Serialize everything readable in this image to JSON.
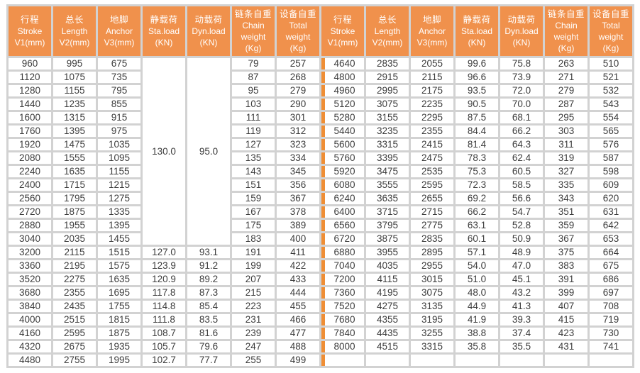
{
  "table_title": "chain-hoist-specification-table",
  "colors": {
    "header_bg": "#f0914c",
    "divider_orange": "#ef8e35",
    "grid_gutter": "#d2d2d2",
    "cell_bg": "#ffffff",
    "header_text": "#ffffff",
    "cell_text": "#3c3c3c"
  },
  "header": {
    "columns": [
      {
        "key": "stroke",
        "zh": "行程",
        "en": "Stroke",
        "unit": "V1(mm)"
      },
      {
        "key": "length",
        "zh": "总长",
        "en": "Length",
        "unit": "V2(mm)"
      },
      {
        "key": "anchor",
        "zh": "地脚",
        "en": "Anchor",
        "unit": "V3(mm)"
      },
      {
        "key": "sta-load",
        "zh": "静载荷",
        "en": "Sta.load",
        "unit": "(KN)"
      },
      {
        "key": "dyn-load",
        "zh": "动载荷",
        "en": "Dyn.load",
        "unit": "(KN)"
      },
      {
        "key": "chain-weight",
        "zh": "链条自重",
        "en": "Chain weight",
        "unit": "(Kg)"
      },
      {
        "key": "total-weight",
        "zh": "设备自重",
        "en": "Total weight",
        "unit": "(Kg)"
      }
    ]
  },
  "left_table": {
    "merged": {
      "sta_load": "130.0",
      "dyn_load": "95.0",
      "row_span": 14
    },
    "rows": [
      [
        "960",
        "995",
        "675",
        null,
        null,
        "79",
        "257"
      ],
      [
        "1120",
        "1075",
        "735",
        null,
        null,
        "87",
        "268"
      ],
      [
        "1280",
        "1155",
        "795",
        null,
        null,
        "95",
        "279"
      ],
      [
        "1440",
        "1235",
        "855",
        null,
        null,
        "103",
        "290"
      ],
      [
        "1600",
        "1315",
        "915",
        null,
        null,
        "111",
        "301"
      ],
      [
        "1760",
        "1395",
        "975",
        null,
        null,
        "119",
        "312"
      ],
      [
        "1920",
        "1475",
        "1035",
        null,
        null,
        "127",
        "323"
      ],
      [
        "2080",
        "1555",
        "1095",
        null,
        null,
        "135",
        "334"
      ],
      [
        "2240",
        "1635",
        "1155",
        null,
        null,
        "143",
        "345"
      ],
      [
        "2400",
        "1715",
        "1215",
        null,
        null,
        "151",
        "356"
      ],
      [
        "2560",
        "1795",
        "1275",
        null,
        null,
        "159",
        "367"
      ],
      [
        "2720",
        "1875",
        "1335",
        null,
        null,
        "167",
        "378"
      ],
      [
        "2880",
        "1955",
        "1395",
        null,
        null,
        "175",
        "389"
      ],
      [
        "3040",
        "2035",
        "1455",
        null,
        null,
        "183",
        "400"
      ],
      [
        "3200",
        "2115",
        "1515",
        "127.0",
        "93.1",
        "191",
        "411"
      ],
      [
        "3360",
        "2195",
        "1575",
        "123.9",
        "91.2",
        "199",
        "422"
      ],
      [
        "3520",
        "2275",
        "1635",
        "120.9",
        "89.2",
        "207",
        "433"
      ],
      [
        "3680",
        "2355",
        "1695",
        "117.8",
        "87.3",
        "215",
        "444"
      ],
      [
        "3840",
        "2435",
        "1755",
        "114.8",
        "85.4",
        "223",
        "455"
      ],
      [
        "4000",
        "2515",
        "1815",
        "111.8",
        "83.5",
        "231",
        "466"
      ],
      [
        "4160",
        "2595",
        "1875",
        "108.7",
        "81.6",
        "239",
        "477"
      ],
      [
        "4320",
        "2675",
        "1935",
        "105.7",
        "79.6",
        "247",
        "488"
      ],
      [
        "4480",
        "2755",
        "1995",
        "102.7",
        "77.7",
        "255",
        "499"
      ]
    ]
  },
  "right_table": {
    "rows": [
      [
        "4640",
        "2835",
        "2055",
        "99.6",
        "75.8",
        "263",
        "510"
      ],
      [
        "4800",
        "2915",
        "2115",
        "96.6",
        "73.9",
        "271",
        "521"
      ],
      [
        "4960",
        "2995",
        "2175",
        "93.5",
        "72.0",
        "279",
        "532"
      ],
      [
        "5120",
        "3075",
        "2235",
        "90.5",
        "70.0",
        "287",
        "543"
      ],
      [
        "5280",
        "3155",
        "2295",
        "87.5",
        "68.1",
        "295",
        "554"
      ],
      [
        "5440",
        "3235",
        "2355",
        "84.4",
        "66.2",
        "303",
        "565"
      ],
      [
        "5600",
        "3315",
        "2415",
        "81.4",
        "64.3",
        "311",
        "576"
      ],
      [
        "5760",
        "3395",
        "2475",
        "78.3",
        "62.4",
        "319",
        "587"
      ],
      [
        "5920",
        "3475",
        "2535",
        "75.3",
        "60.5",
        "327",
        "598"
      ],
      [
        "6080",
        "3555",
        "2595",
        "72.3",
        "58.5",
        "335",
        "609"
      ],
      [
        "6240",
        "3635",
        "2655",
        "69.2",
        "56.6",
        "343",
        "620"
      ],
      [
        "6400",
        "3715",
        "2715",
        "66.2",
        "54.7",
        "351",
        "631"
      ],
      [
        "6560",
        "3795",
        "2775",
        "63.1",
        "52.8",
        "359",
        "642"
      ],
      [
        "6720",
        "3875",
        "2835",
        "60.1",
        "50.9",
        "367",
        "653"
      ],
      [
        "6880",
        "3955",
        "2895",
        "57.1",
        "48.9",
        "375",
        "664"
      ],
      [
        "7040",
        "4035",
        "2955",
        "54.0",
        "47.0",
        "383",
        "675"
      ],
      [
        "7200",
        "4115",
        "3015",
        "51.0",
        "45.1",
        "391",
        "686"
      ],
      [
        "7360",
        "4195",
        "3075",
        "48.0",
        "43.2",
        "399",
        "697"
      ],
      [
        "7520",
        "4275",
        "3135",
        "44.9",
        "41.3",
        "407",
        "708"
      ],
      [
        "7680",
        "4355",
        "3195",
        "41.9",
        "39.3",
        "415",
        "719"
      ],
      [
        "7840",
        "4435",
        "3255",
        "38.8",
        "37.4",
        "423",
        "730"
      ],
      [
        "8000",
        "4515",
        "3315",
        "35.8",
        "35.5",
        "431",
        "741"
      ],
      [
        "",
        "",
        "",
        "",
        "",
        "",
        ""
      ]
    ]
  }
}
